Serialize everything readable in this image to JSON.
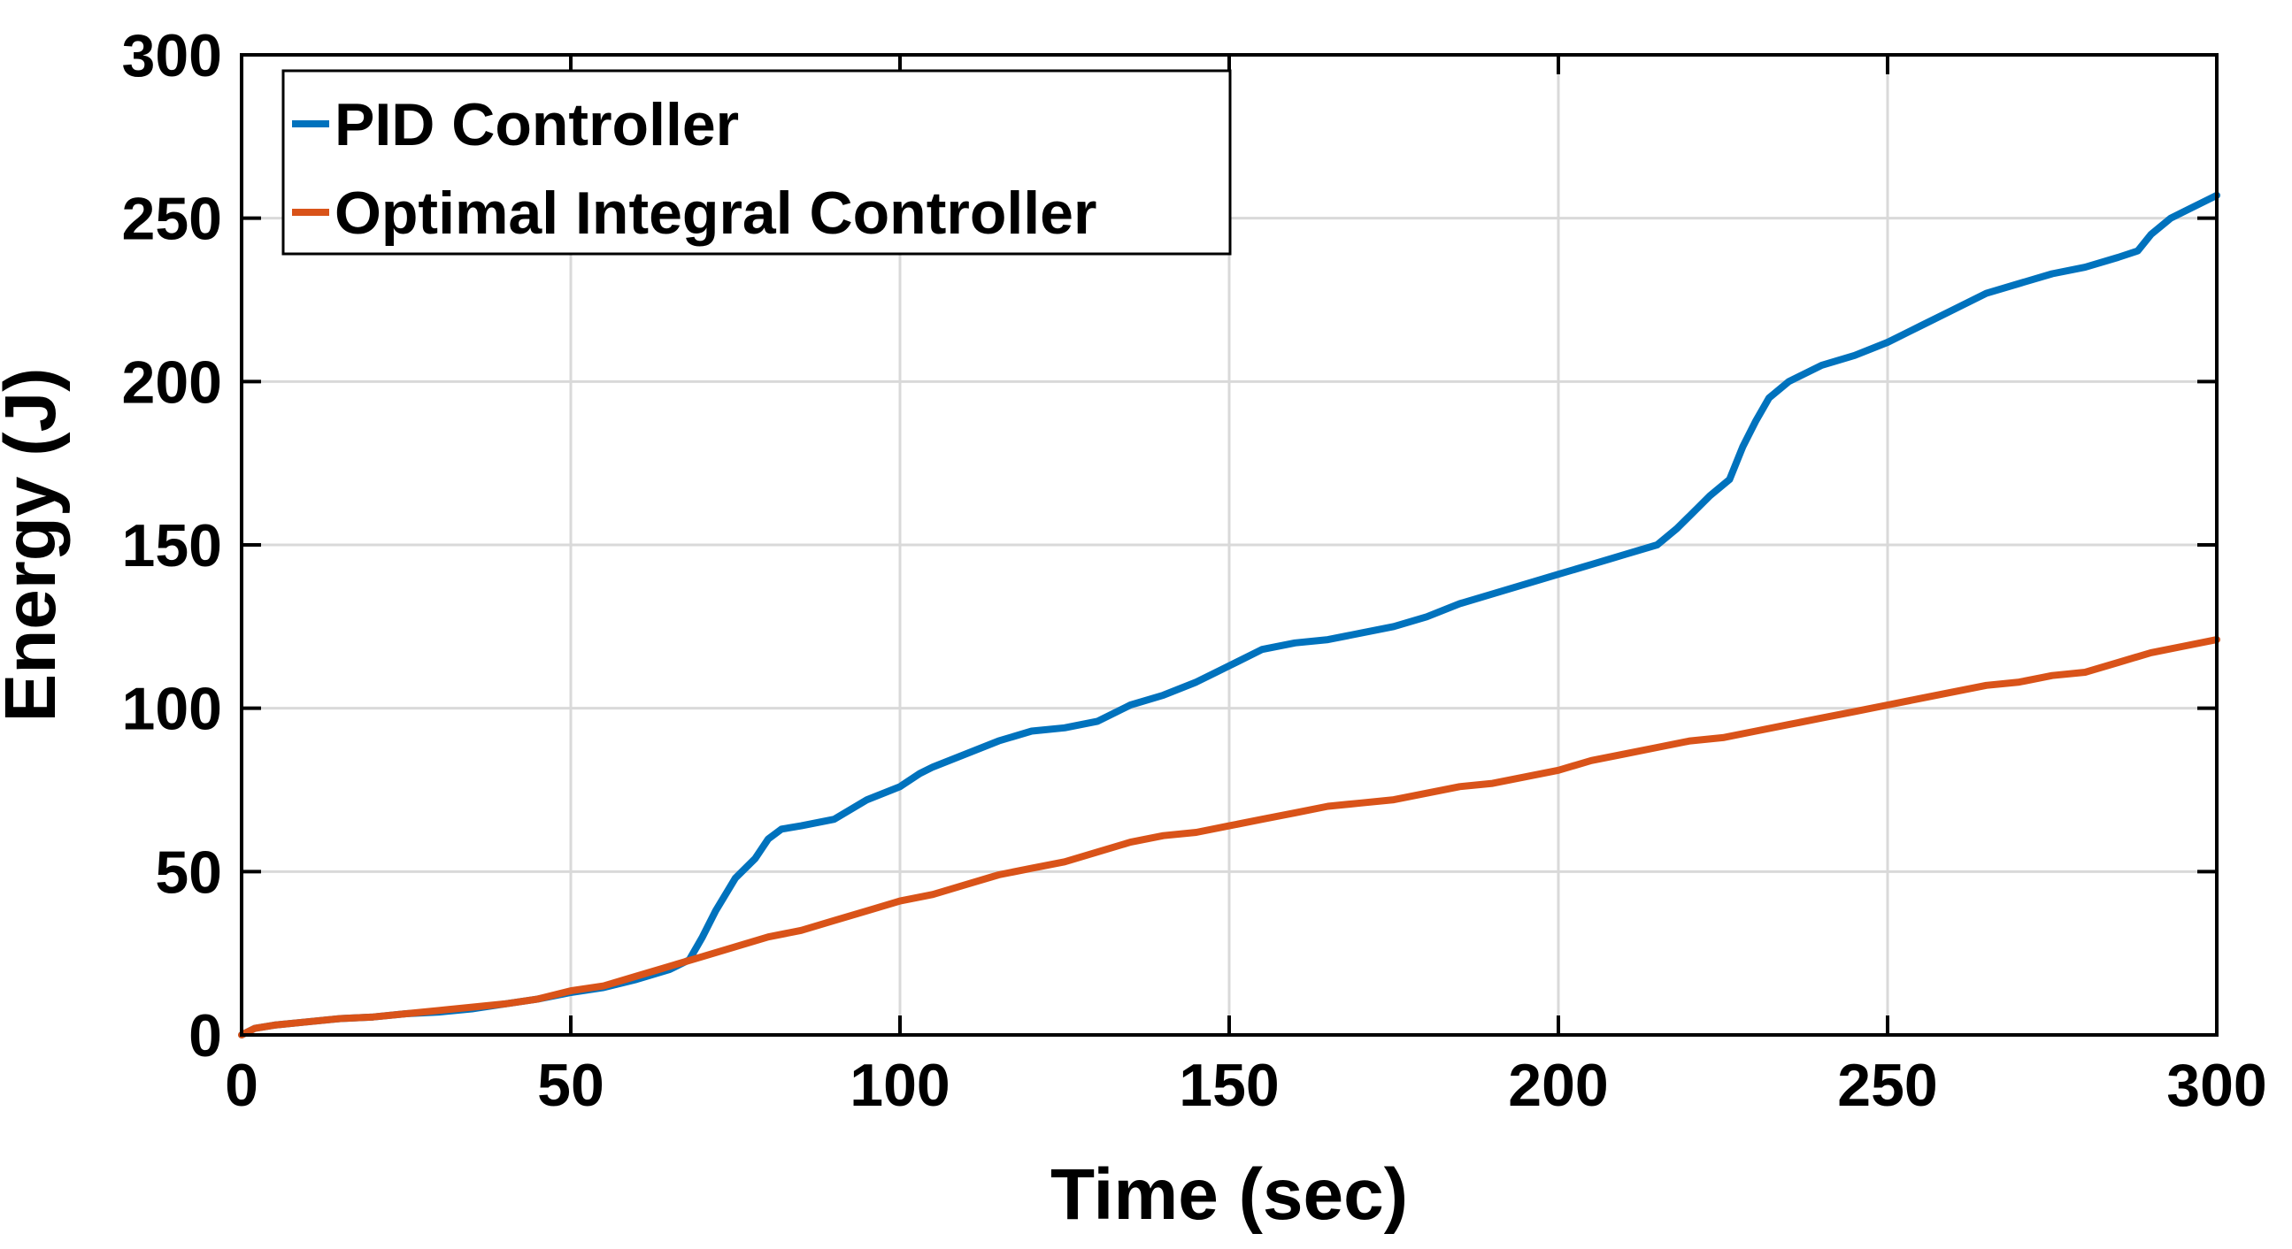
{
  "chart_data": {
    "type": "line",
    "xlabel": "Time (sec)",
    "ylabel": "Energy (J)",
    "xlim": [
      0,
      300
    ],
    "ylim": [
      0,
      300
    ],
    "xticks": [
      0,
      50,
      100,
      150,
      200,
      250,
      300
    ],
    "yticks": [
      0,
      50,
      100,
      150,
      200,
      250,
      300
    ],
    "xtick_labels": [
      "0",
      "50",
      "100",
      "150",
      "200",
      "250",
      "300"
    ],
    "ytick_labels": [
      "0",
      "50",
      "100",
      "150",
      "200",
      "250",
      "300"
    ],
    "grid": true,
    "legend_position": "top-left",
    "series": [
      {
        "name": "PID Controller",
        "color": "#0072BD",
        "x": [
          0,
          2,
          5,
          10,
          15,
          20,
          25,
          30,
          35,
          40,
          45,
          50,
          55,
          60,
          65,
          68,
          70,
          72,
          75,
          78,
          80,
          82,
          85,
          90,
          95,
          100,
          103,
          105,
          110,
          115,
          120,
          125,
          130,
          135,
          140,
          145,
          150,
          155,
          160,
          165,
          170,
          175,
          180,
          185,
          190,
          195,
          200,
          205,
          210,
          215,
          218,
          220,
          223,
          226,
          228,
          230,
          232,
          235,
          240,
          245,
          250,
          255,
          260,
          265,
          270,
          275,
          280,
          285,
          288,
          290,
          293,
          296,
          300
        ],
        "y": [
          0,
          2,
          3,
          4,
          5,
          5.5,
          6.5,
          7,
          8,
          9.5,
          11,
          13,
          14.5,
          17,
          20,
          23,
          30,
          38,
          48,
          54,
          60,
          63,
          64,
          66,
          72,
          76,
          80,
          82,
          86,
          90,
          93,
          94,
          96,
          101,
          104,
          108,
          113,
          118,
          120,
          121,
          123,
          125,
          128,
          132,
          135,
          138,
          141,
          144,
          147,
          150,
          155,
          159,
          165,
          170,
          180,
          188,
          195,
          200,
          205,
          208,
          212,
          217,
          222,
          227,
          230,
          233,
          235,
          238,
          240,
          245,
          250,
          253,
          257
        ]
      },
      {
        "name": "Optimal Integral Controller",
        "color": "#D95319",
        "x": [
          0,
          2,
          5,
          10,
          15,
          20,
          25,
          30,
          35,
          40,
          45,
          50,
          55,
          60,
          65,
          70,
          75,
          80,
          85,
          90,
          95,
          100,
          105,
          110,
          115,
          120,
          125,
          130,
          135,
          140,
          145,
          150,
          155,
          160,
          165,
          170,
          175,
          180,
          185,
          190,
          195,
          200,
          205,
          210,
          215,
          220,
          225,
          230,
          235,
          240,
          245,
          250,
          255,
          260,
          265,
          270,
          275,
          280,
          285,
          290,
          295,
          300
        ],
        "y": [
          0,
          2,
          3,
          4,
          5,
          5.5,
          6.5,
          7.5,
          8.5,
          9.5,
          11,
          13.5,
          15,
          18,
          21,
          24,
          27,
          30,
          32,
          35,
          38,
          41,
          43,
          46,
          49,
          51,
          53,
          56,
          59,
          61,
          62,
          64,
          66,
          68,
          70,
          71,
          72,
          74,
          76,
          77,
          79,
          81,
          84,
          86,
          88,
          90,
          91,
          93,
          95,
          97,
          99,
          101,
          103,
          105,
          107,
          108,
          110,
          111,
          114,
          117,
          119,
          121
        ]
      }
    ]
  }
}
